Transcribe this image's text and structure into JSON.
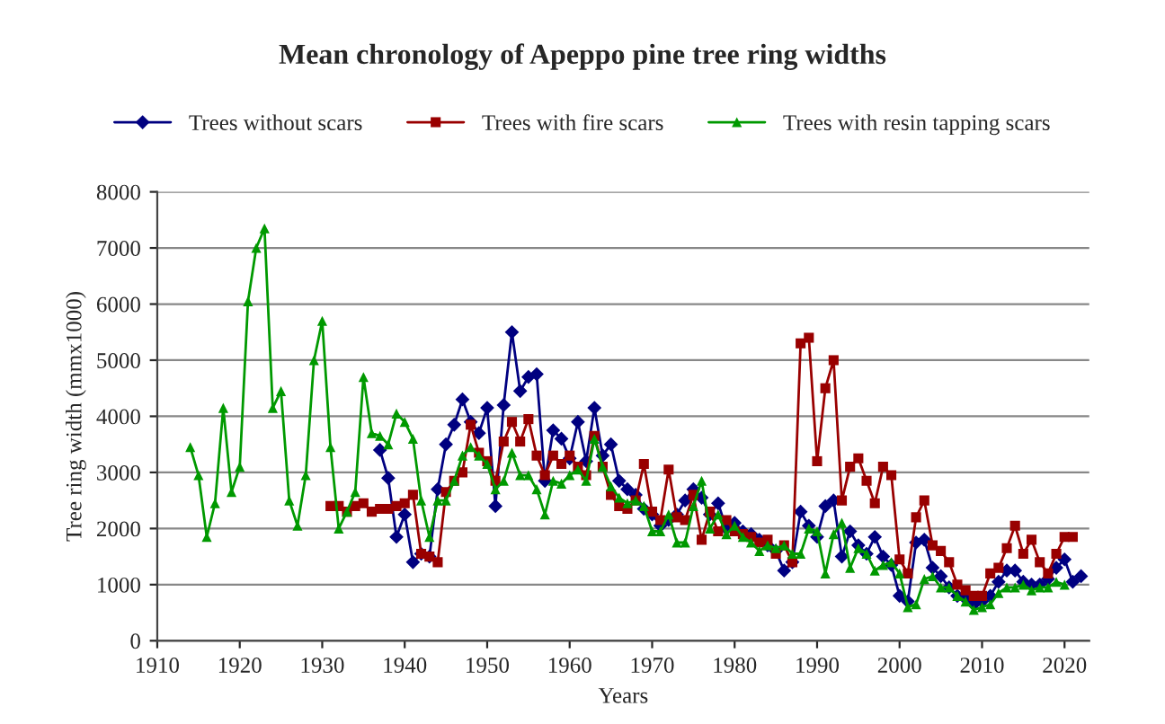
{
  "chart_data": {
    "type": "line",
    "title": "Mean chronology of Apeppo pine tree ring widths",
    "xlabel": "Years",
    "ylabel": "Tree ring width (mmx1000)",
    "xlim": [
      1910,
      2023
    ],
    "xticks": [
      1910,
      1920,
      1930,
      1940,
      1950,
      1960,
      1970,
      1980,
      1990,
      2000,
      2010,
      2020
    ],
    "ylim": [
      0,
      8000
    ],
    "yticks": [
      0,
      1000,
      2000,
      3000,
      4000,
      5000,
      6000,
      7000,
      8000
    ],
    "grid": "y",
    "legend": "top",
    "line_style": "solid",
    "series": [
      {
        "name": "Trees without scars",
        "color": "#000080",
        "marker": "diamond",
        "x": [
          1937,
          1938,
          1939,
          1940,
          1941,
          1942,
          1943,
          1944,
          1945,
          1946,
          1947,
          1948,
          1949,
          1950,
          1951,
          1952,
          1953,
          1954,
          1955,
          1956,
          1957,
          1958,
          1959,
          1960,
          1961,
          1962,
          1963,
          1964,
          1965,
          1966,
          1967,
          1968,
          1969,
          1970,
          1971,
          1972,
          1973,
          1974,
          1975,
          1976,
          1977,
          1978,
          1979,
          1980,
          1981,
          1982,
          1983,
          1984,
          1985,
          1986,
          1987,
          1988,
          1989,
          1990,
          1991,
          1992,
          1993,
          1994,
          1995,
          1996,
          1997,
          1998,
          1999,
          2000,
          2001,
          2002,
          2003,
          2004,
          2005,
          2006,
          2007,
          2008,
          2009,
          2010,
          2011,
          2012,
          2013,
          2014,
          2015,
          2016,
          2017,
          2018,
          2019,
          2020,
          2021,
          2022
        ],
        "values": [
          3400,
          2900,
          1850,
          2250,
          1400,
          1550,
          1500,
          2700,
          3500,
          3850,
          4300,
          3900,
          3700,
          4150,
          2400,
          4200,
          5500,
          4450,
          4700,
          4750,
          2850,
          3750,
          3600,
          3250,
          3900,
          3200,
          4150,
          3300,
          3500,
          2850,
          2700,
          2600,
          2350,
          2250,
          2050,
          2150,
          2250,
          2500,
          2700,
          2550,
          2250,
          2450,
          2000,
          2100,
          1950,
          1900,
          1800,
          1700,
          1600,
          1250,
          1400,
          2300,
          2050,
          1850,
          2400,
          2500,
          1500,
          1950,
          1700,
          1550,
          1850,
          1500,
          1350,
          800,
          700,
          1750,
          1800,
          1300,
          1150,
          950,
          800,
          750,
          650,
          700,
          800,
          1050,
          1250,
          1250,
          1050,
          1000,
          1000,
          1100,
          1300,
          1450,
          1050,
          1150
        ]
      },
      {
        "name": "Trees with fire scars",
        "color": "#990000",
        "marker": "square",
        "x": [
          1931,
          1932,
          1933,
          1934,
          1935,
          1936,
          1937,
          1938,
          1939,
          1940,
          1941,
          1942,
          1943,
          1944,
          1945,
          1946,
          1947,
          1948,
          1949,
          1950,
          1951,
          1952,
          1953,
          1954,
          1955,
          1956,
          1957,
          1958,
          1959,
          1960,
          1961,
          1962,
          1963,
          1964,
          1965,
          1966,
          1967,
          1968,
          1969,
          1970,
          1971,
          1972,
          1973,
          1974,
          1975,
          1976,
          1977,
          1978,
          1979,
          1980,
          1981,
          1982,
          1983,
          1984,
          1985,
          1986,
          1987,
          1988,
          1989,
          1990,
          1991,
          1992,
          1993,
          1994,
          1995,
          1996,
          1997,
          1998,
          1999,
          2000,
          2001,
          2002,
          2003,
          2004,
          2005,
          2006,
          2007,
          2008,
          2009,
          2010,
          2011,
          2012,
          2013,
          2014,
          2015,
          2016,
          2017,
          2018,
          2019,
          2020,
          2021
        ],
        "values": [
          2400,
          2400,
          2300,
          2400,
          2450,
          2300,
          2350,
          2350,
          2400,
          2450,
          2600,
          1550,
          1500,
          1400,
          2650,
          2850,
          3000,
          3850,
          3350,
          3200,
          2850,
          3550,
          3900,
          3550,
          3950,
          3300,
          2950,
          3300,
          3150,
          3300,
          3100,
          2950,
          3650,
          3100,
          2600,
          2400,
          2350,
          2500,
          3150,
          2300,
          2150,
          3050,
          2200,
          2150,
          2600,
          1800,
          2300,
          1950,
          2150,
          1950,
          1900,
          1850,
          1750,
          1800,
          1550,
          1700,
          1400,
          5300,
          5400,
          3200,
          4500,
          5000,
          2500,
          3100,
          3250,
          2850,
          2450,
          3100,
          2950,
          1450,
          1200,
          2200,
          2500,
          1700,
          1600,
          1400,
          1000,
          900,
          800,
          800,
          1200,
          1300,
          1650,
          2050,
          1550,
          1800,
          1400,
          1200,
          1550,
          1850,
          1850
        ]
      },
      {
        "name": "Trees with resin tapping scars",
        "color": "#009900",
        "marker": "triangle",
        "x": [
          1914,
          1915,
          1916,
          1917,
          1918,
          1919,
          1920,
          1921,
          1922,
          1923,
          1924,
          1925,
          1926,
          1927,
          1928,
          1929,
          1930,
          1931,
          1932,
          1933,
          1934,
          1935,
          1936,
          1937,
          1938,
          1939,
          1940,
          1941,
          1942,
          1943,
          1944,
          1945,
          1946,
          1947,
          1948,
          1949,
          1950,
          1951,
          1952,
          1953,
          1954,
          1955,
          1956,
          1957,
          1958,
          1959,
          1960,
          1961,
          1962,
          1963,
          1964,
          1965,
          1966,
          1967,
          1968,
          1969,
          1970,
          1971,
          1972,
          1973,
          1974,
          1975,
          1976,
          1977,
          1978,
          1979,
          1980,
          1981,
          1982,
          1983,
          1984,
          1985,
          1986,
          1987,
          1988,
          1989,
          1990,
          1991,
          1992,
          1993,
          1994,
          1995,
          1996,
          1997,
          1998,
          1999,
          2000,
          2001,
          2002,
          2003,
          2004,
          2005,
          2006,
          2007,
          2008,
          2009,
          2010,
          2011,
          2012,
          2013,
          2014,
          2015,
          2016,
          2017,
          2018,
          2019,
          2020
        ],
        "values": [
          3450,
          2950,
          1850,
          2450,
          4150,
          2650,
          3100,
          6050,
          7000,
          7350,
          4150,
          4450,
          2500,
          2050,
          2950,
          5000,
          5700,
          3450,
          2000,
          2300,
          2650,
          4700,
          3700,
          3650,
          3500,
          4050,
          3900,
          3600,
          2500,
          1850,
          2500,
          2500,
          2850,
          3300,
          3450,
          3300,
          3150,
          2700,
          2850,
          3350,
          2950,
          2950,
          2700,
          2250,
          2850,
          2800,
          2950,
          3050,
          2850,
          3600,
          3100,
          2750,
          2550,
          2450,
          2500,
          2400,
          1950,
          1950,
          2250,
          1750,
          1750,
          2400,
          2850,
          2000,
          2250,
          1900,
          2050,
          1850,
          1750,
          1600,
          1700,
          1650,
          1700,
          1550,
          1550,
          2000,
          1950,
          1200,
          1900,
          2100,
          1300,
          1650,
          1550,
          1250,
          1350,
          1400,
          1200,
          600,
          650,
          1100,
          1150,
          950,
          950,
          800,
          700,
          550,
          600,
          650,
          850,
          950,
          950,
          1000,
          900,
          950,
          950,
          1050,
          1000
        ]
      }
    ]
  }
}
